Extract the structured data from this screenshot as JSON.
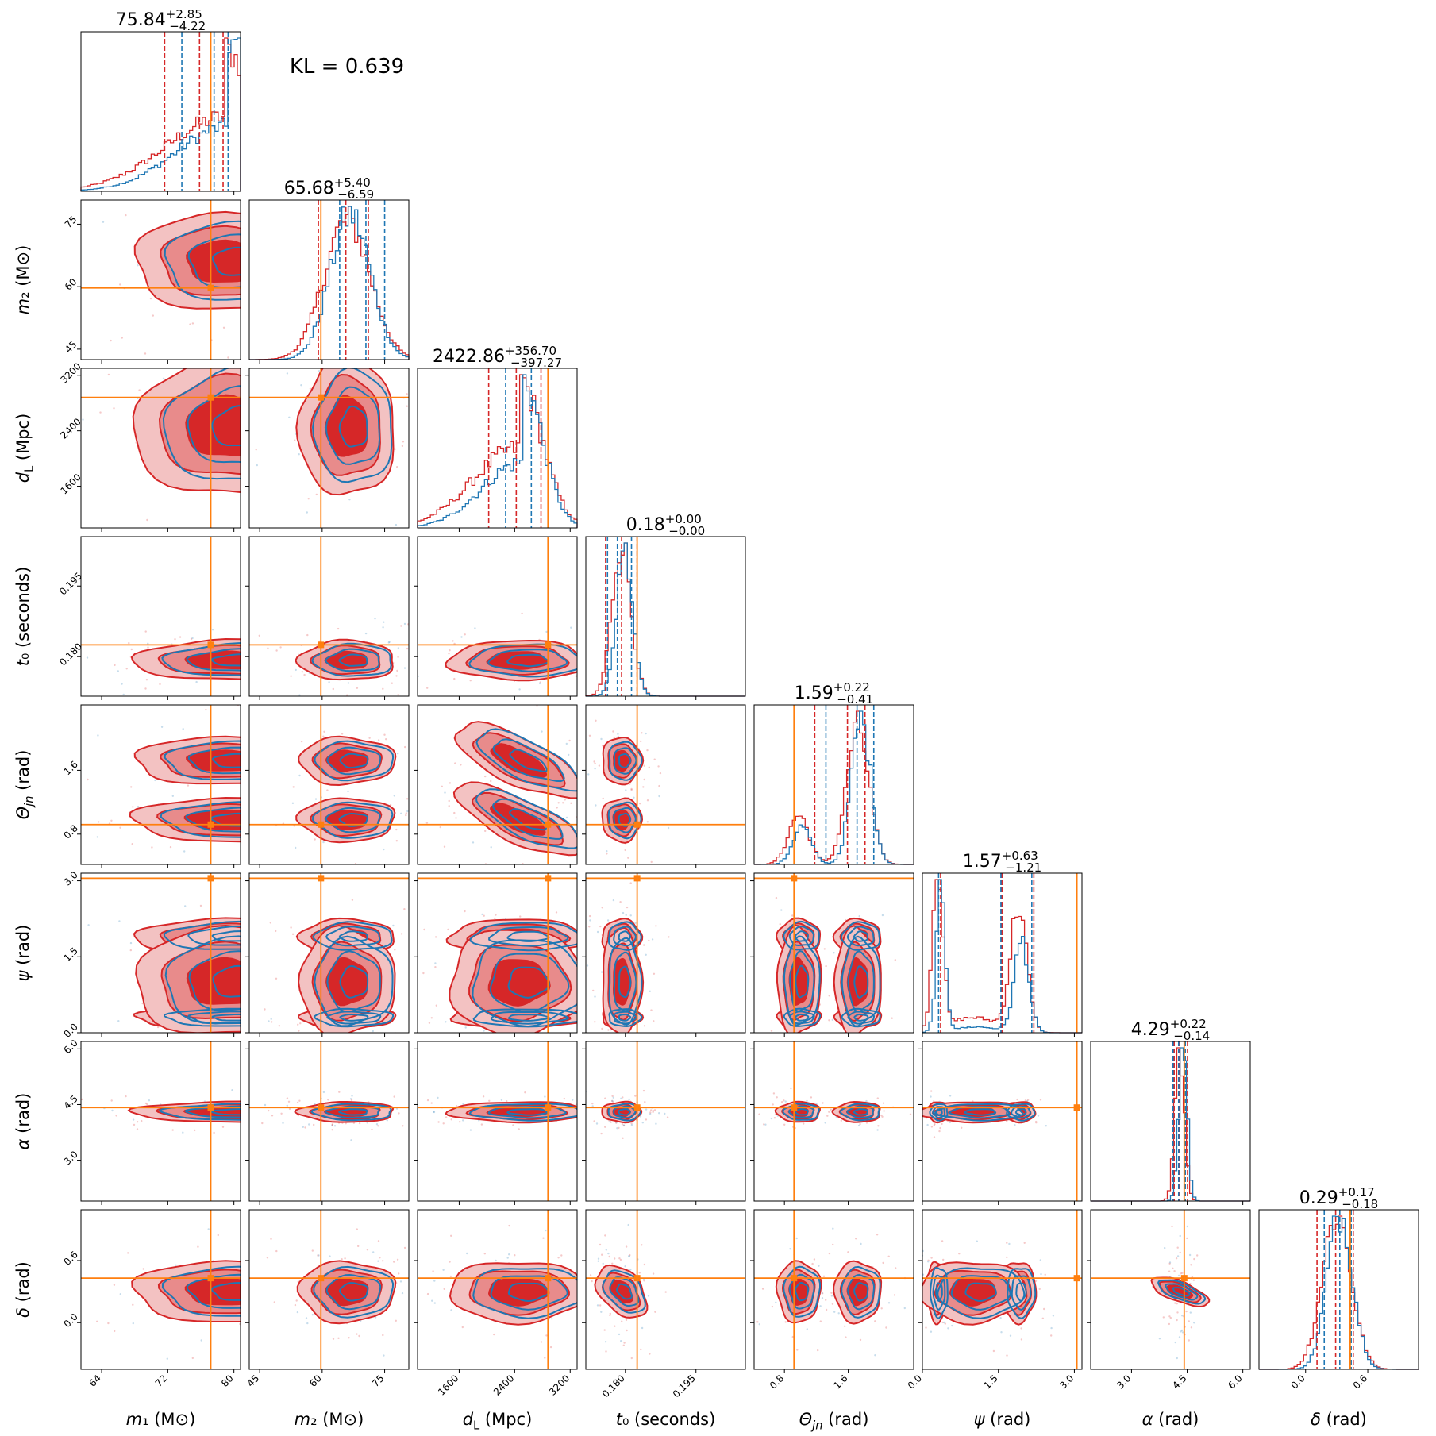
{
  "annotation": "KL = 0.639",
  "colors": {
    "primary": "#d62728",
    "secondary": "#1f77b4",
    "truth": "#ff7f0e"
  },
  "chart_data": {
    "type": "corner",
    "parameters": [
      {
        "id": "m1",
        "label": "m₁ (M⊙)",
        "range": [
          61.5,
          80.8
        ],
        "ticks": [
          64,
          72,
          80
        ],
        "truth": 77.2,
        "title_value": "75.84",
        "title_plus": "+2.85",
        "title_minus": "−4.22",
        "q_primary": [
          71.62,
          75.84,
          78.69
        ],
        "q_secondary": [
          73.7,
          77.6,
          79.3
        ]
      },
      {
        "id": "m2",
        "label": "m₂ (M⊙)",
        "range": [
          42.5,
          80.8
        ],
        "ticks": [
          45,
          60,
          75
        ],
        "truth": 59.7,
        "title_value": "65.68",
        "title_plus": "+5.40",
        "title_minus": "−6.59",
        "q_primary": [
          59.09,
          65.68,
          71.08
        ],
        "q_secondary": [
          64.2,
          70.5,
          75.0
        ]
      },
      {
        "id": "dL",
        "label": "d_L (Mpc)",
        "range": [
          1000,
          3300
        ],
        "ticks": [
          1600,
          2400,
          3200
        ],
        "truth": 2880,
        "title_value": "2422.86",
        "title_plus": "+356.70",
        "title_minus": "−397.27",
        "q_primary": [
          2025.6,
          2422.86,
          2779.56
        ],
        "q_secondary": [
          2270,
          2640,
          2890
        ]
      },
      {
        "id": "t0",
        "label": "t₀ (seconds)",
        "range": [
          0.1716,
          0.2055
        ],
        "ticks": [
          0.18,
          0.195
        ],
        "tick_labels": [
          "0.180",
          "0.195"
        ],
        "truth": 0.1825,
        "title_value": "0.18",
        "title_plus": "+0.00",
        "title_minus": "−0.00",
        "q_primary": [
          0.1758,
          0.1792,
          0.1825
        ],
        "q_secondary": [
          0.1762,
          0.1783,
          0.1813
        ]
      },
      {
        "id": "theta_jn",
        "label": "Θ_jn (rad)",
        "range": [
          0.42,
          2.42
        ],
        "ticks": [
          0.8,
          1.6
        ],
        "truth": 0.92,
        "title_value": "1.59",
        "title_plus": "+0.22",
        "title_minus": "−0.41",
        "q_primary": [
          1.18,
          1.59,
          1.81
        ],
        "q_secondary": [
          1.32,
          1.71,
          1.92
        ]
      },
      {
        "id": "psi",
        "label": "ψ (rad)",
        "range": [
          0.0,
          3.15
        ],
        "ticks": [
          0.0,
          1.5,
          3.0
        ],
        "tick_labels": [
          "0.0",
          "1.5",
          "3.0"
        ],
        "truth": 3.05,
        "title_value": "1.57",
        "title_plus": "+0.63",
        "title_minus": "−1.21",
        "q_primary": [
          0.36,
          1.57,
          2.2
        ],
        "q_secondary": [
          0.32,
          1.55,
          2.16
        ]
      },
      {
        "id": "alpha",
        "label": "α (rad)",
        "range": [
          1.9,
          6.2
        ],
        "ticks": [
          3.0,
          4.5,
          6.0
        ],
        "tick_labels": [
          "3.0",
          "4.5",
          "6.0"
        ],
        "truth": 4.42,
        "title_value": "4.29",
        "title_plus": "+0.22",
        "title_minus": "−0.14",
        "q_primary": [
          4.15,
          4.29,
          4.51
        ],
        "q_secondary": [
          4.12,
          4.27,
          4.45
        ]
      },
      {
        "id": "delta",
        "label": "δ (rad)",
        "range": [
          -0.45,
          1.09
        ],
        "ticks": [
          0.0,
          0.6
        ],
        "tick_labels": [
          "0.0",
          "0.6"
        ],
        "truth": 0.43,
        "title_value": "0.29",
        "title_plus": "+0.17",
        "title_minus": "−0.18",
        "q_primary": [
          0.11,
          0.29,
          0.46
        ],
        "q_secondary": [
          0.18,
          0.33,
          0.44
        ]
      }
    ],
    "series": [
      {
        "role": "primary",
        "color": "#d62728"
      },
      {
        "role": "secondary",
        "color": "#1f77b4"
      }
    ],
    "densities": {
      "m1": [
        {
          "m": 79.0,
          "s": 3.8,
          "w": 1,
          "skew": "left"
        }
      ],
      "m2": [
        {
          "m": 66.0,
          "s": 5.5,
          "w": 1
        }
      ],
      "dL": [
        {
          "m": 2450,
          "s": 340,
          "w": 1,
          "skew": "left"
        }
      ],
      "t0": [
        {
          "m": 0.1792,
          "s": 0.002,
          "w": 1
        }
      ],
      "theta_jn": [
        {
          "m": 0.98,
          "s": 0.13,
          "w": 0.25
        },
        {
          "m": 1.72,
          "s": 0.14,
          "w": 0.75
        }
      ],
      "psi": [
        {
          "m": 0.3,
          "s": 0.1,
          "w": 0.38
        },
        {
          "m": 1.9,
          "s": 0.16,
          "w": 0.45
        },
        {
          "m": 1.0,
          "s": 0.5,
          "w": 0.17
        }
      ],
      "alpha": [
        {
          "m": 4.3,
          "s": 0.13,
          "w": 1
        }
      ],
      "delta": [
        {
          "m": 0.3,
          "s": 0.14,
          "w": 1
        }
      ]
    },
    "grid": false
  }
}
